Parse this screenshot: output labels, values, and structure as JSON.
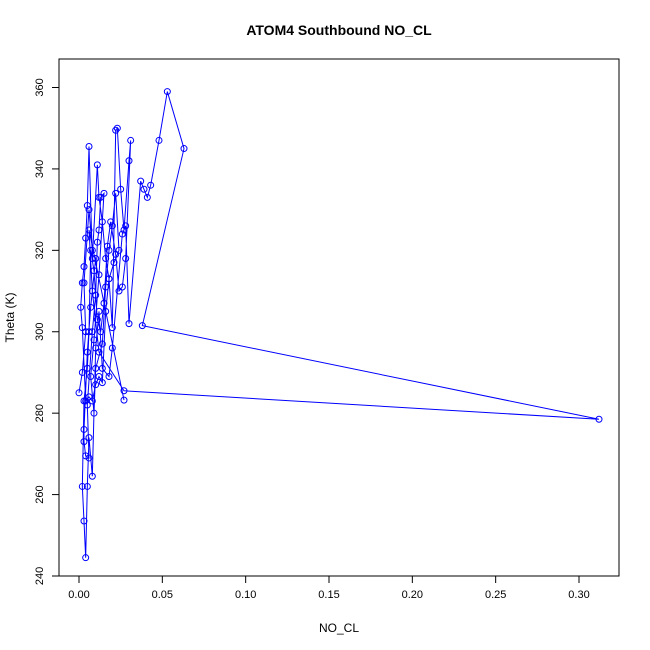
{
  "chart_data": {
    "type": "scatter",
    "title": "ATOM4 Southbound NO_CL",
    "xlabel": "NO_CL",
    "ylabel": "Theta (K)",
    "xlim": [
      -0.012,
      0.324
    ],
    "ylim": [
      240,
      367
    ],
    "xticks": [
      0.0,
      0.05,
      0.1,
      0.15,
      0.2,
      0.25,
      0.3
    ],
    "xtick_labels": [
      "0.00",
      "0.05",
      "0.10",
      "0.15",
      "0.20",
      "0.25",
      "0.30"
    ],
    "yticks": [
      240,
      260,
      280,
      300,
      320,
      340,
      360
    ],
    "ytick_labels": [
      "240",
      "260",
      "280",
      "300",
      "320",
      "340",
      "360"
    ],
    "grid": false,
    "legend": "none",
    "series": [
      {
        "color": "#0000ff",
        "connected": true,
        "points": [
          [
            0.0,
            285
          ],
          [
            0.002,
            290
          ],
          [
            0.004,
            300
          ],
          [
            0.003,
            312
          ],
          [
            0.006,
            330
          ],
          [
            0.008,
            320
          ],
          [
            0.01,
            318
          ],
          [
            0.007,
            306
          ],
          [
            0.005,
            295
          ],
          [
            0.003,
            276
          ],
          [
            0.003,
            273
          ],
          [
            0.004,
            269.5
          ],
          [
            0.006,
            269
          ],
          [
            0.005,
            282
          ],
          [
            0.008,
            300
          ],
          [
            0.01,
            309
          ],
          [
            0.011,
            322
          ],
          [
            0.012,
            325
          ],
          [
            0.013,
            333
          ],
          [
            0.015,
            334
          ],
          [
            0.012,
            314
          ],
          [
            0.009,
            298
          ],
          [
            0.007,
            289
          ],
          [
            0.009,
            280
          ],
          [
            0.01,
            291
          ],
          [
            0.014,
            297
          ],
          [
            0.016,
            311
          ],
          [
            0.018,
            320
          ],
          [
            0.02,
            326
          ],
          [
            0.022,
            334
          ],
          [
            0.024,
            320
          ],
          [
            0.021,
            317
          ],
          [
            0.018,
            313
          ],
          [
            0.016,
            305
          ],
          [
            0.014,
            287.5
          ],
          [
            0.012,
            289
          ],
          [
            0.01,
            287
          ],
          [
            0.008,
            283
          ],
          [
            0.006,
            284
          ],
          [
            0.004,
            283
          ],
          [
            0.002,
            301
          ],
          [
            0.001,
            306
          ],
          [
            0.002,
            312
          ],
          [
            0.003,
            316
          ],
          [
            0.004,
            323
          ],
          [
            0.005,
            331
          ],
          [
            0.006,
            345.5
          ],
          [
            0.008,
            318
          ],
          [
            0.011,
            341
          ],
          [
            0.012,
            333
          ],
          [
            0.014,
            327
          ],
          [
            0.016,
            318
          ],
          [
            0.018,
            313
          ],
          [
            0.02,
            301
          ],
          [
            0.022,
            349.5
          ],
          [
            0.023,
            350
          ],
          [
            0.025,
            335
          ],
          [
            0.027,
            325
          ],
          [
            0.03,
            342
          ],
          [
            0.031,
            347
          ],
          [
            0.028,
            318
          ],
          [
            0.026,
            311
          ],
          [
            0.024,
            310
          ],
          [
            0.022,
            319
          ],
          [
            0.019,
            327
          ],
          [
            0.017,
            321
          ],
          [
            0.015,
            307
          ],
          [
            0.013,
            300
          ],
          [
            0.011,
            303
          ],
          [
            0.009,
            315
          ],
          [
            0.007,
            320
          ],
          [
            0.006,
            300
          ],
          [
            0.005,
            291
          ],
          [
            0.003,
            283
          ],
          [
            0.002,
            262
          ],
          [
            0.003,
            253.5
          ],
          [
            0.004,
            244.5
          ],
          [
            0.005,
            262
          ],
          [
            0.006,
            274
          ],
          [
            0.008,
            264.5
          ],
          [
            0.01,
            296
          ],
          [
            0.012,
            305
          ],
          [
            0.014,
            291
          ],
          [
            0.018,
            289
          ],
          [
            0.02,
            296
          ],
          [
            0.026,
            324
          ],
          [
            0.028,
            326
          ],
          [
            0.03,
            302
          ],
          [
            0.037,
            337
          ],
          [
            0.039,
            335
          ],
          [
            0.041,
            333
          ],
          [
            0.043,
            336
          ],
          [
            0.048,
            347
          ],
          [
            0.053,
            359
          ],
          [
            0.063,
            345
          ],
          [
            0.038,
            301.5
          ],
          [
            0.312,
            278.5
          ],
          [
            0.027,
            285.5
          ],
          [
            0.012,
            295
          ],
          [
            0.008,
            310
          ],
          [
            0.006,
            325
          ],
          [
            0.027,
            283.2
          ]
        ]
      }
    ]
  }
}
